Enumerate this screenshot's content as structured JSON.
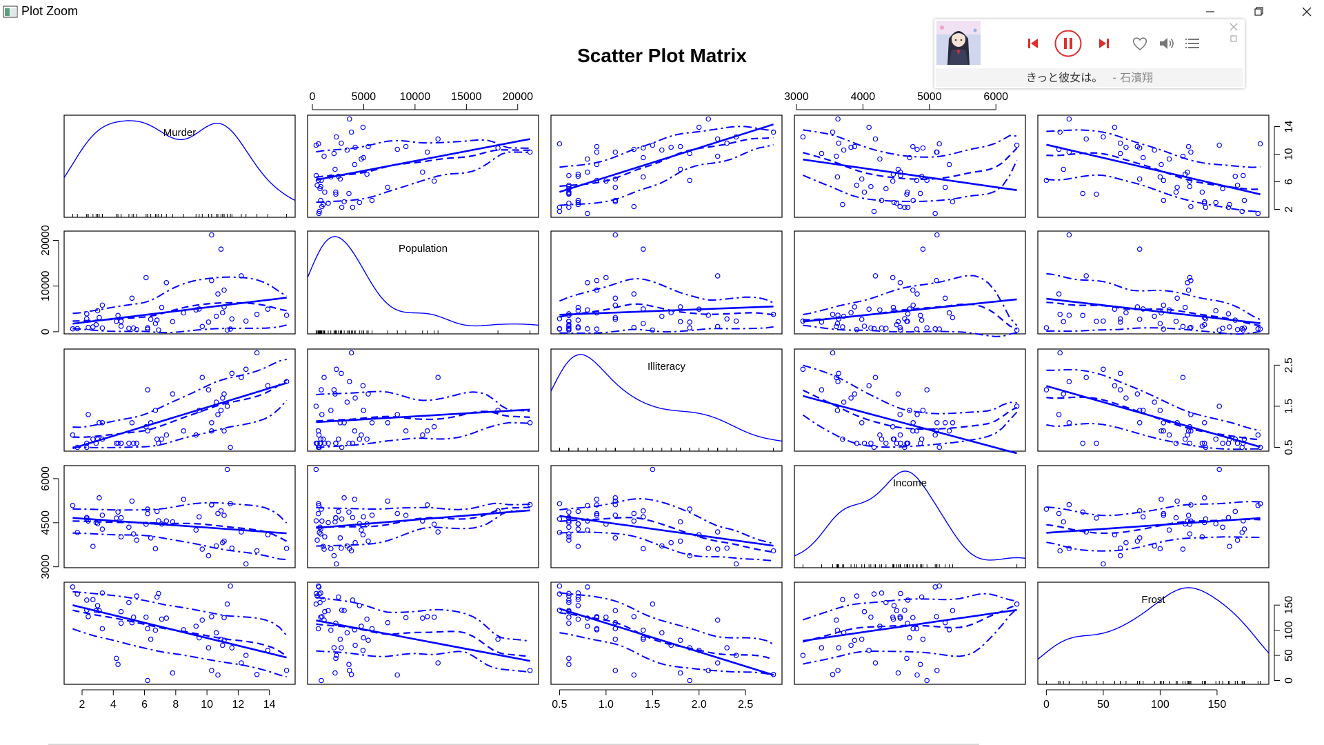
{
  "window": {
    "title": "Plot Zoom"
  },
  "player": {
    "song": "きっと彼女は。",
    "artist": "- 石濱翔",
    "accent_color": "#e02c2c"
  },
  "chart_data": {
    "type": "scatter",
    "title": "Scatter Plot Matrix",
    "variables": [
      "Murder",
      "Population",
      "Illiteracy",
      "Income",
      "Frost"
    ],
    "ranges": {
      "Murder": [
        1.4,
        15.1
      ],
      "Population": [
        365,
        21198
      ],
      "Illiteracy": [
        0.5,
        2.8
      ],
      "Income": [
        3098,
        6315
      ],
      "Frost": [
        0,
        188
      ]
    },
    "ticks": {
      "Murder": [
        "2",
        "4",
        "6",
        "8",
        "10",
        "12",
        "14"
      ],
      "Population": [
        "0",
        "5000",
        "10000",
        "15000",
        "20000"
      ],
      "Illiteracy": [
        "0.5",
        "1.0",
        "1.5",
        "2.0",
        "2.5"
      ],
      "Income": [
        "3000",
        "4000",
        "5000",
        "6000"
      ],
      "Frost": [
        "0",
        "50",
        "100",
        "150"
      ]
    },
    "right_axis_ticks": {
      "Murder": [
        "2",
        "6",
        "10",
        "14"
      ],
      "Illiteracy": [
        "0.5",
        "1.5",
        "2.5"
      ],
      "Frost": [
        "0",
        "50",
        "100",
        "150"
      ]
    },
    "left_axis_ticks": {
      "Population": [
        "0",
        "10000",
        "20000"
      ],
      "Income": [
        "3000",
        "4500",
        "6000"
      ]
    },
    "data": {
      "Murder": [
        15.1,
        11.3,
        7.8,
        10.1,
        10.3,
        6.8,
        3.1,
        6.2,
        10.7,
        13.9,
        6.2,
        5.3,
        10.3,
        7.1,
        2.3,
        4.5,
        10.6,
        13.2,
        2.7,
        8.5,
        3.3,
        11.1,
        2.3,
        12.5,
        9.3,
        5.0,
        2.9,
        11.5,
        3.3,
        5.2,
        9.7,
        10.9,
        11.1,
        1.4,
        7.4,
        6.4,
        4.2,
        6.1,
        2.4,
        11.6,
        1.7,
        11.0,
        12.2,
        4.5,
        5.5,
        9.5,
        4.3,
        6.7,
        3.0,
        6.9
      ],
      "Population": [
        3615,
        365,
        2212,
        2110,
        21198,
        2541,
        3100,
        579,
        8277,
        4931,
        868,
        813,
        11197,
        5313,
        2861,
        2280,
        3387,
        3806,
        1058,
        4122,
        5814,
        9111,
        3921,
        2341,
        4767,
        746,
        1544,
        590,
        812,
        7333,
        1144,
        18076,
        5441,
        637,
        10735,
        2715,
        2284,
        11860,
        931,
        2816,
        681,
        4173,
        12237,
        1203,
        472,
        4981,
        3559,
        1799,
        4589,
        376
      ],
      "Illiteracy": [
        2.1,
        1.5,
        1.8,
        1.9,
        1.1,
        0.7,
        1.1,
        0.9,
        1.3,
        2.0,
        1.9,
        0.6,
        0.9,
        0.7,
        0.5,
        0.6,
        1.6,
        2.8,
        0.7,
        0.9,
        1.1,
        0.9,
        0.6,
        2.4,
        0.8,
        0.6,
        0.6,
        0.5,
        0.7,
        1.1,
        2.2,
        1.4,
        1.8,
        0.8,
        0.8,
        1.1,
        0.6,
        1.0,
        1.3,
        2.3,
        0.5,
        1.7,
        2.2,
        0.6,
        0.6,
        1.4,
        0.6,
        1.4,
        0.7,
        0.6
      ],
      "Income": [
        3624,
        6315,
        4530,
        3378,
        5114,
        4884,
        5348,
        4809,
        4815,
        4091,
        4963,
        4119,
        5107,
        4458,
        4628,
        4669,
        3712,
        3545,
        3694,
        5299,
        4755,
        4751,
        4675,
        3098,
        4254,
        4347,
        4508,
        5149,
        4281,
        5237,
        3601,
        4903,
        3875,
        5087,
        4561,
        3983,
        4660,
        4449,
        4558,
        3635,
        4167,
        3821,
        4188,
        4022,
        3907,
        4701,
        4864,
        3617,
        4468,
        4566
      ],
      "Frost": [
        20,
        152,
        15,
        65,
        20,
        166,
        139,
        103,
        11,
        60,
        0,
        126,
        127,
        122,
        140,
        114,
        95,
        12,
        161,
        101,
        103,
        125,
        160,
        50,
        108,
        155,
        139,
        188,
        174,
        115,
        120,
        82,
        80,
        186,
        124,
        82,
        44,
        126,
        127,
        65,
        172,
        70,
        35,
        137,
        168,
        85,
        32,
        100,
        149,
        173
      ]
    }
  }
}
